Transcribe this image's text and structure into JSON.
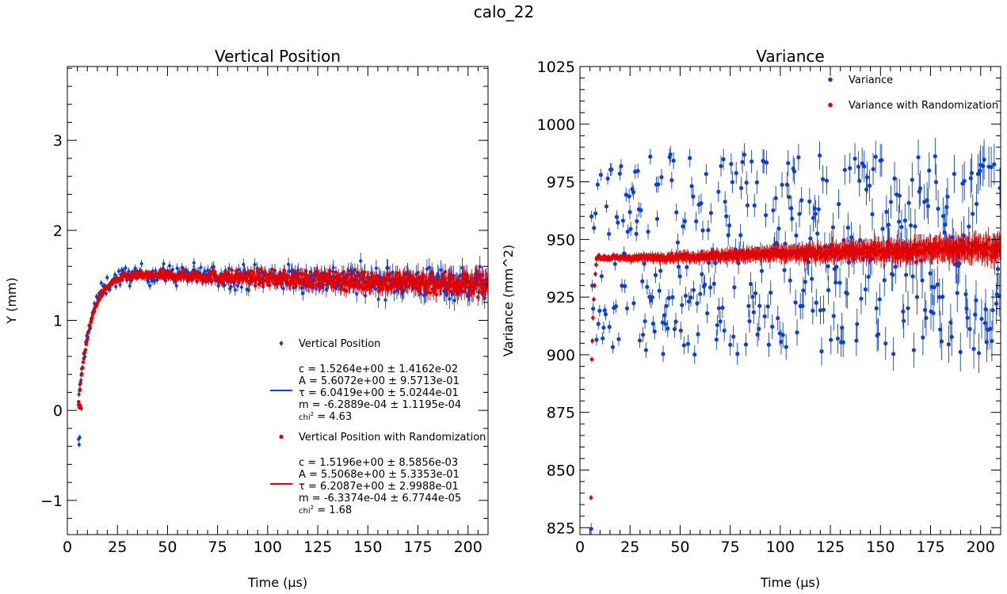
{
  "figure": {
    "suptitle": "calo_22"
  },
  "chart_data": [
    {
      "type": "scatter",
      "title": "Vertical Position",
      "xlabel": "Time (µs)",
      "ylabel": "Y (mm)",
      "xlim": [
        0,
        210
      ],
      "ylim": [
        -1.38,
        3.82
      ],
      "xticks": [
        0,
        25,
        50,
        75,
        100,
        125,
        150,
        175,
        200
      ],
      "yticks": [
        -1,
        0,
        1,
        2,
        3
      ],
      "ytick_labels": [
        "−1",
        "0",
        "1",
        "2",
        "3"
      ],
      "grid": false,
      "legend_position": "lower-right",
      "series": [
        {
          "name": "Vertical Position",
          "color": "#0d3fd6",
          "marker": "diamond",
          "x_range": [
            5.5,
            210
          ],
          "n_points": 420,
          "fit": {
            "c": 1.5264,
            "A": 5.6072,
            "tau": 6.0419,
            "m": -0.00062889,
            "t0": 0
          },
          "scatter_start": 0.09,
          "scatter_end": 0.19,
          "error_start": 0.03,
          "error_end": 0.12,
          "first_points": [
            [
              5.6,
              -0.32
            ],
            [
              5.9,
              -0.38
            ],
            [
              6.2,
              -0.3
            ],
            [
              6.6,
              0.05
            ],
            [
              7.0,
              0.02
            ]
          ]
        },
        {
          "name": "Vertical Position with Randomization",
          "color": "#e00000",
          "marker": "circle",
          "x_range": [
            5.5,
            210
          ],
          "n_points": 620,
          "fit": {
            "c": 1.5196,
            "A": 5.5068,
            "tau": 6.2087,
            "m": -0.00063374,
            "t0": 0
          },
          "scatter_start": 0.025,
          "scatter_end": 0.14,
          "error_start": 0.02,
          "error_end": 0.1,
          "first_points": [
            [
              5.6,
              0.06
            ],
            [
              6.0,
              0.03
            ],
            [
              6.5,
              0.04
            ]
          ]
        }
      ],
      "legend": [
        {
          "kind": "marker",
          "series": 0,
          "label": "Vertical Position"
        },
        {
          "kind": "fit",
          "series": 0,
          "lines": [
            "c = 1.5264e+00 ± 1.4162e-02",
            " A = 5.6072e+00 ± 9.5713e-01",
            " τ = 6.0419e+00 ± 5.0244e-01",
            " m = -6.2889e-04 ± 1.1195e-04"
          ],
          "chi_label": "chi",
          "chi_value": " = 4.63"
        },
        {
          "kind": "marker",
          "series": 1,
          "label": "Vertical Position with Randomization"
        },
        {
          "kind": "fit",
          "series": 1,
          "lines": [
            "c = 1.5196e+00 ± 8.5856e-03",
            " A = 5.5068e+00 ± 5.3353e-01",
            " τ = 6.2087e+00 ± 2.9988e-01",
            " m = -6.3374e-04 ± 6.7744e-05"
          ],
          "chi_label": "chi",
          "chi_value": " = 1.68"
        }
      ]
    },
    {
      "type": "scatter",
      "title": "Variance",
      "xlabel": "Time (µs)",
      "ylabel": "Variance (mm^2)",
      "xlim": [
        0,
        210
      ],
      "ylim": [
        822,
        1025
      ],
      "xticks": [
        0,
        25,
        50,
        75,
        100,
        125,
        150,
        175,
        200
      ],
      "yticks": [
        825,
        850,
        875,
        900,
        925,
        950,
        975,
        1000,
        1025
      ],
      "grid": false,
      "legend_position": "upper-right",
      "series": [
        {
          "name": "Variance",
          "color": "#0d3fd6",
          "marker": "circle",
          "x_range": [
            7.5,
            210
          ],
          "n_points": 400,
          "band_low": 900,
          "band_high": 987,
          "error_start": 2.5,
          "error_end": 9,
          "first_points": [
            [
              5.6,
              824.5
            ],
            [
              5.8,
              960
            ],
            [
              6.2,
              930
            ],
            [
              6.6,
              920
            ],
            [
              7.0,
              955
            ]
          ]
        },
        {
          "name": "Variance with Randomization",
          "color": "#e00000",
          "marker": "circle",
          "x_range": [
            8,
            210
          ],
          "n_points": 650,
          "base": 942,
          "slope": 0.025,
          "base_x": 30,
          "scatter_start": 0.8,
          "scatter_end": 3.2,
          "error_start": 1.2,
          "error_end": 5.5,
          "first_points": [
            [
              5.5,
              838
            ],
            [
              5.9,
              898
            ],
            [
              6.2,
              906
            ],
            [
              6.5,
              916
            ],
            [
              6.9,
              924
            ],
            [
              7.3,
              930
            ],
            [
              7.7,
              935
            ],
            [
              8.1,
              939
            ]
          ]
        }
      ],
      "legend": [
        {
          "kind": "marker",
          "series": 0,
          "label": "Variance"
        },
        {
          "kind": "marker",
          "series": 1,
          "label": "Variance with Randomization"
        }
      ]
    }
  ]
}
